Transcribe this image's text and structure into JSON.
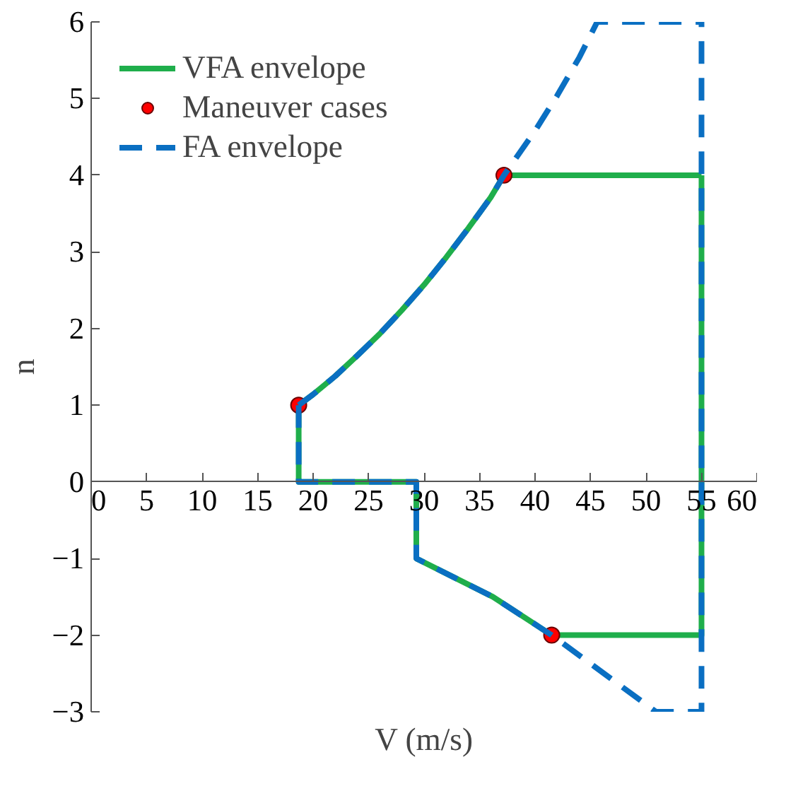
{
  "chart_data": {
    "type": "line",
    "xlabel": "V (m/s)",
    "ylabel": "n",
    "xlim": [
      0,
      60
    ],
    "ylim": [
      -3,
      6
    ],
    "xticks": [
      0,
      5,
      10,
      15,
      20,
      25,
      30,
      35,
      40,
      45,
      50,
      55,
      60
    ],
    "yticks": [
      -3,
      -2,
      -1,
      0,
      1,
      2,
      3,
      4,
      5,
      6
    ],
    "grid": false,
    "legend": "top left",
    "series": [
      {
        "name": "VFA envelope",
        "color": "#1fae4b",
        "line_style": "solid",
        "x": [
          18.7,
          18.7,
          29.3,
          29.3,
          36.2,
          41.5,
          55,
          55,
          null,
          18.7,
          20,
          22,
          24,
          26,
          28,
          30,
          32,
          34,
          36,
          37.2,
          55
        ],
        "values": [
          1,
          0,
          0,
          -1,
          -1.5,
          -2,
          -2,
          4,
          null,
          1,
          1.14,
          1.38,
          1.65,
          1.93,
          2.24,
          2.57,
          2.93,
          3.31,
          3.71,
          4,
          4
        ]
      },
      {
        "name": "Maneuver cases",
        "type": "scatter",
        "color": "#ff0000",
        "marker": "circle",
        "x": [
          18.7,
          37.2,
          41.5
        ],
        "values": [
          1,
          4,
          -2
        ]
      },
      {
        "name": "FA envelope",
        "color": "#0a6fc2",
        "line_style": "dashed",
        "x": [
          18.7,
          18.7,
          29.3,
          29.3,
          36.2,
          41.5,
          50.9,
          55,
          55,
          null,
          18.7,
          20,
          22,
          24,
          26,
          28,
          30,
          32,
          34,
          36,
          37.2,
          40,
          42,
          44,
          45.6,
          55
        ],
        "values": [
          1,
          0,
          0,
          -1,
          -1.5,
          -2,
          -3,
          -3,
          6,
          null,
          1,
          1.14,
          1.38,
          1.65,
          1.93,
          2.24,
          2.57,
          2.93,
          3.31,
          3.71,
          4,
          4.58,
          5.04,
          5.54,
          6,
          6
        ]
      }
    ]
  }
}
